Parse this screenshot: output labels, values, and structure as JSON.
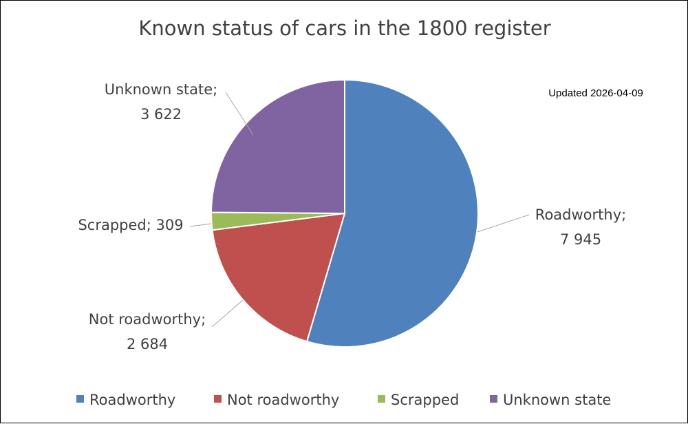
{
  "chart_data": {
    "type": "pie",
    "title": "Known status of cars in the 1800 register",
    "note": "Updated 2026-04-09",
    "legend_position": "bottom",
    "slices": [
      {
        "label": "Roadworthy",
        "value": 7945,
        "display": "7 945",
        "color": "#4f81bd"
      },
      {
        "label": "Not roadworthy",
        "value": 2684,
        "display": "2 684",
        "color": "#c0504d"
      },
      {
        "label": "Scrapped",
        "value": 309,
        "display": "309",
        "color": "#9bbb59"
      },
      {
        "label": "Unknown state",
        "value": 3622,
        "display": "3 622",
        "color": "#8064a2"
      }
    ]
  }
}
